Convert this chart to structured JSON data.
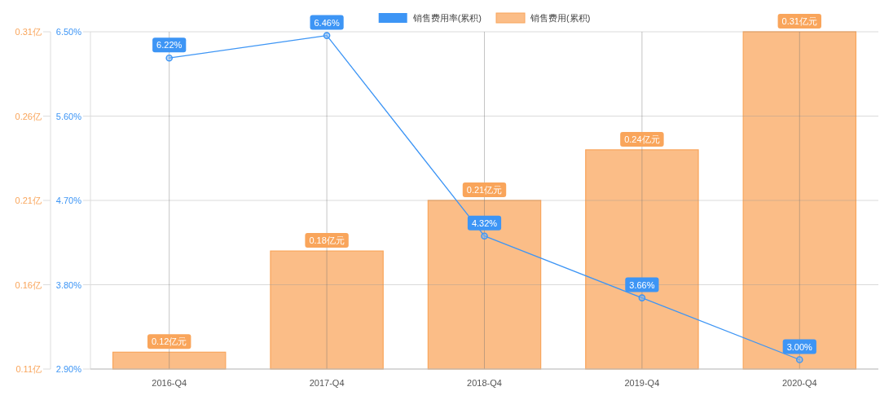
{
  "chart_data": {
    "type": "bar",
    "categories": [
      "2016-Q4",
      "2017-Q4",
      "2018-Q4",
      "2019-Q4",
      "2020-Q4"
    ],
    "series": [
      {
        "name": "销售费用率(累积)",
        "type": "line",
        "axis": "y2",
        "color": "#3d95f5",
        "values": [
          6.22,
          6.46,
          4.32,
          3.66,
          3.0
        ],
        "value_labels": [
          "6.22%",
          "6.46%",
          "4.32%",
          "3.66%",
          "3.00%"
        ]
      },
      {
        "name": "销售费用(累积)",
        "axis": "y",
        "color": "#fbbd87",
        "values": [
          0.12,
          0.18,
          0.21,
          0.24,
          0.31
        ],
        "value_labels": [
          "0.12亿元",
          "0.18亿元",
          "0.21亿元",
          "0.24亿元",
          "0.31亿元"
        ]
      }
    ],
    "ylim": [
      0.11,
      0.31
    ],
    "yticks": [
      {
        "value": 0.11,
        "label": "0.11亿"
      },
      {
        "value": 0.16,
        "label": "0.16亿"
      },
      {
        "value": 0.21,
        "label": "0.21亿"
      },
      {
        "value": 0.26,
        "label": "0.26亿"
      },
      {
        "value": 0.31,
        "label": "0.31亿"
      }
    ],
    "y2lim": [
      2.9,
      6.5
    ],
    "y2ticks": [
      {
        "value": 2.9,
        "label": "2.90%"
      },
      {
        "value": 3.8,
        "label": "3.80%"
      },
      {
        "value": 4.7,
        "label": "4.70%"
      },
      {
        "value": 5.6,
        "label": "5.60%"
      },
      {
        "value": 6.5,
        "label": "6.50%"
      }
    ],
    "grid": true,
    "legend": "top",
    "marker": "circle"
  }
}
